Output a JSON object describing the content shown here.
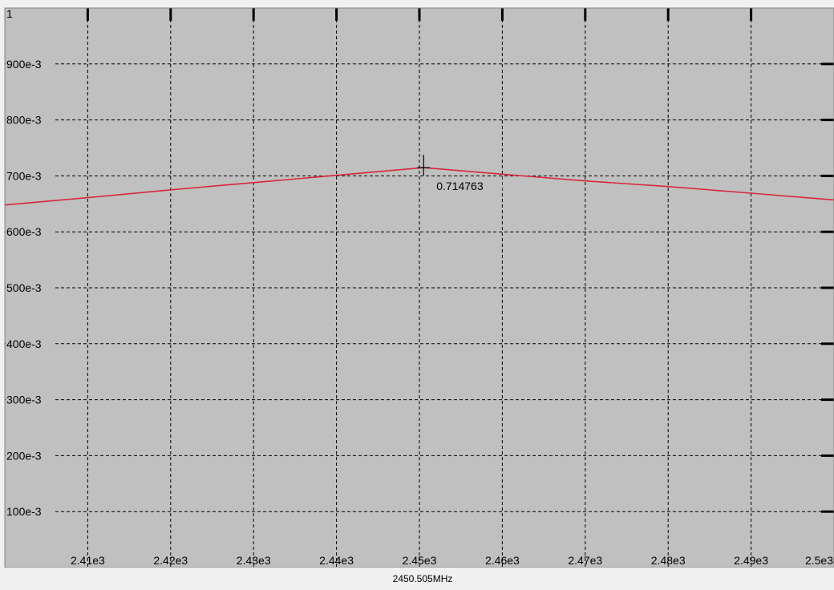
{
  "chart_data": {
    "type": "line",
    "title": "",
    "xlabel": "",
    "ylabel": "",
    "xlim": [
      2400,
      2500
    ],
    "ylim": [
      0,
      1
    ],
    "grid": true,
    "x_ticks": [
      2410,
      2420,
      2430,
      2440,
      2450,
      2460,
      2470,
      2480,
      2490,
      2500
    ],
    "x_tick_labels": [
      "2.41e3",
      "2.42e3",
      "2.43e3",
      "2.44e3",
      "2.45e3",
      "2.46e3",
      "2.47e3",
      "2.48e3",
      "2.49e3",
      "2.5e3"
    ],
    "y_ticks": [
      0.1,
      0.2,
      0.3,
      0.4,
      0.5,
      0.6,
      0.7,
      0.8,
      0.9,
      1
    ],
    "y_tick_labels": [
      "100e-3",
      "200e-3",
      "300e-3",
      "400e-3",
      "500e-3",
      "600e-3",
      "700e-3",
      "800e-3",
      "900e-3",
      "1"
    ],
    "series": [
      {
        "color": "#d8283c",
        "x": [
          2400,
          2410,
          2420,
          2430,
          2440,
          2450,
          2450.505,
          2460,
          2470,
          2480,
          2490,
          2500
        ],
        "y": [
          0.648,
          0.661,
          0.675,
          0.688,
          0.701,
          0.714,
          0.7148,
          0.703,
          0.691,
          0.681,
          0.669,
          0.657
        ]
      }
    ],
    "marker": {
      "x": 2450.505,
      "y": 0.714763,
      "label": "0.714763"
    },
    "cursor_readout": "2450.505MHz"
  },
  "colors": {
    "plot_background": "#c0c0c0",
    "grid": "#000000",
    "trace": "#d8283c",
    "status_bar": "#f0f0f0"
  }
}
